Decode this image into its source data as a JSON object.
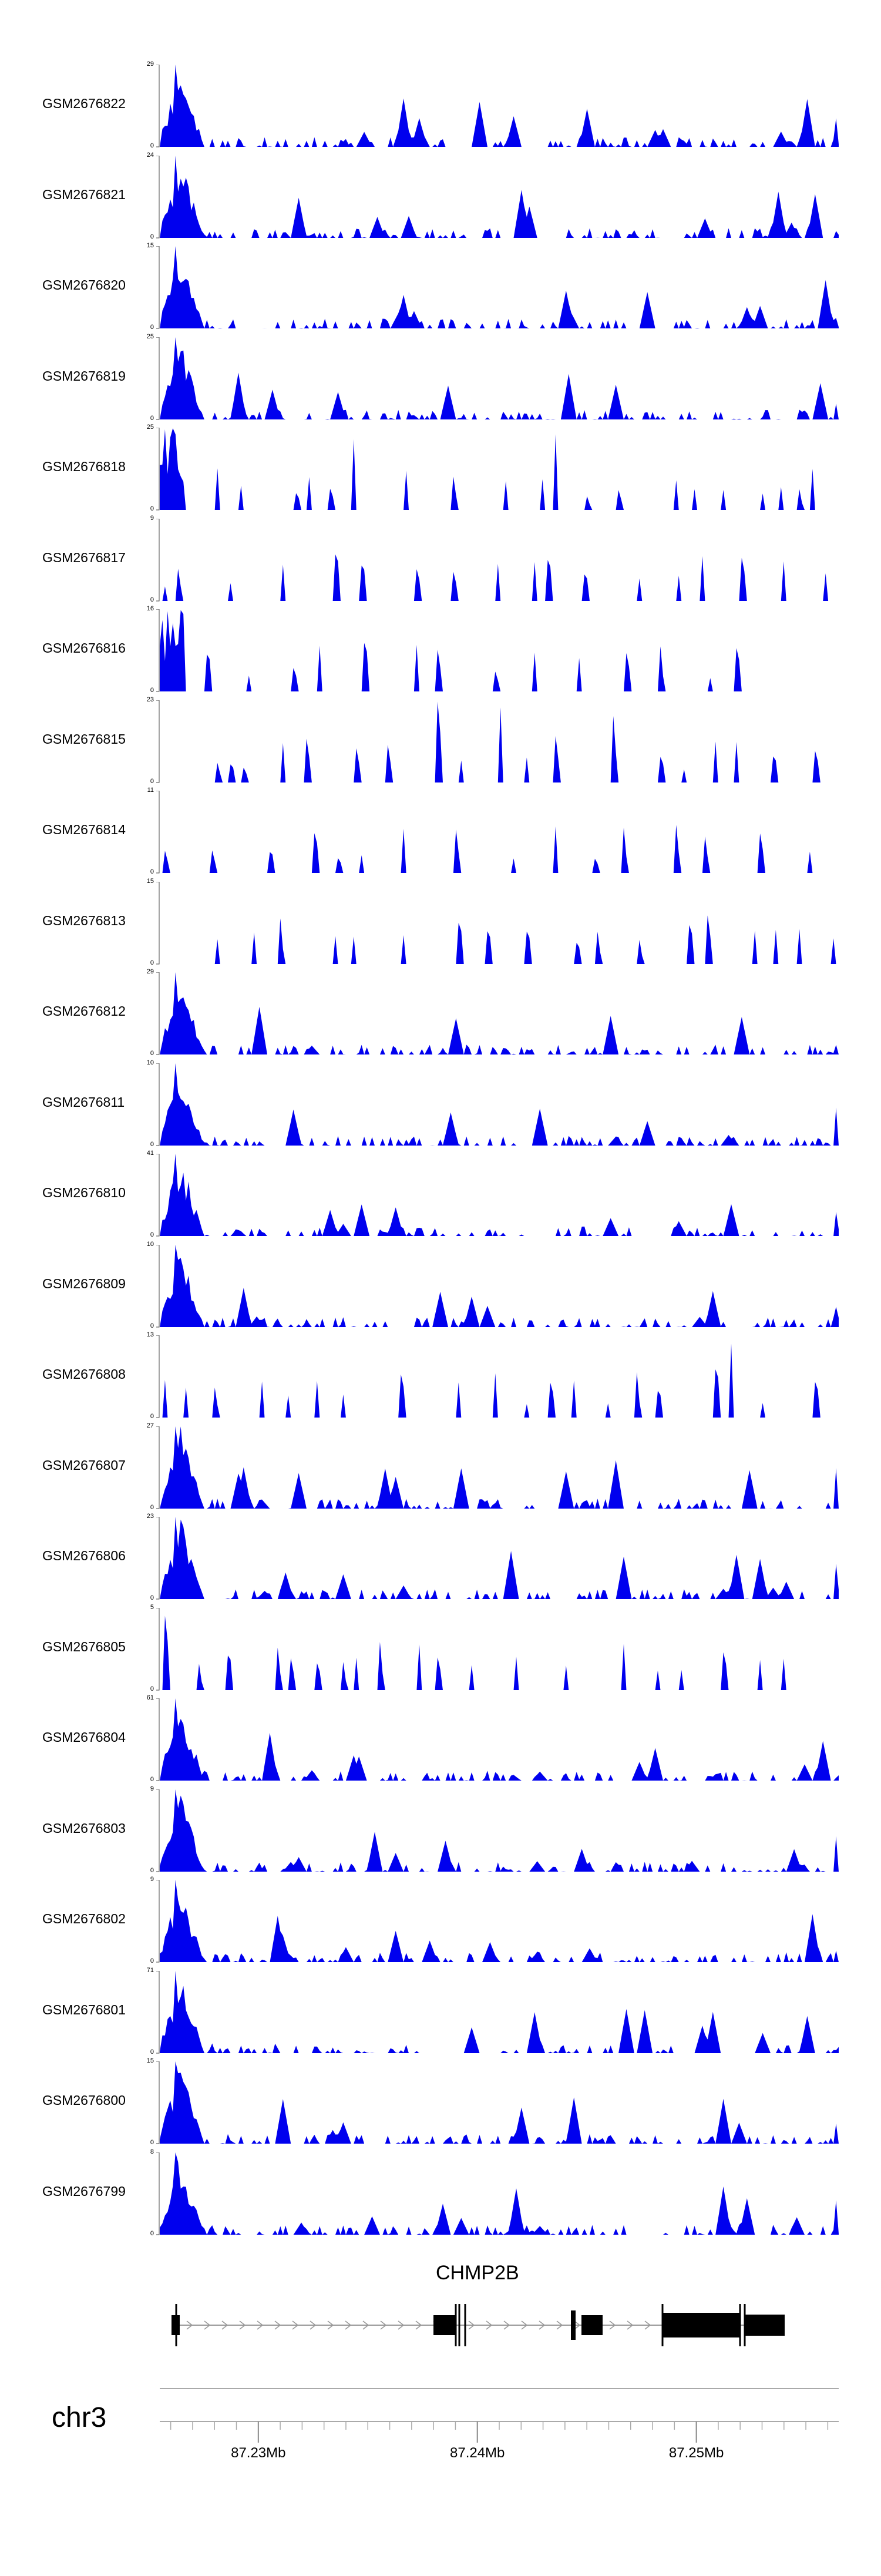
{
  "chart_data": {
    "type": "area",
    "region": {
      "chromosome": "chr3",
      "start_mb": 87.2255,
      "end_mb": 87.2565
    },
    "x_axis": {
      "ticks": [
        87.23,
        87.24,
        87.25
      ],
      "tick_labels": [
        "87.23Mb",
        "87.24Mb",
        "87.25Mb"
      ]
    },
    "fill_color": "#0000ee",
    "gene": {
      "name": "CHMP2B",
      "exon_color": "#000000"
    },
    "tracks": [
      {
        "sample": "GSM2676822",
        "ymax": "29",
        "ymin": "0"
      },
      {
        "sample": "GSM2676821",
        "ymax": "24",
        "ymin": "0"
      },
      {
        "sample": "GSM2676820",
        "ymax": "15",
        "ymin": "0"
      },
      {
        "sample": "GSM2676819",
        "ymax": "25",
        "ymin": "0"
      },
      {
        "sample": "GSM2676818",
        "ymax": "25",
        "ymin": "0"
      },
      {
        "sample": "GSM2676817",
        "ymax": "9",
        "ymin": "0"
      },
      {
        "sample": "GSM2676816",
        "ymax": "16",
        "ymin": "0"
      },
      {
        "sample": "GSM2676815",
        "ymax": "23",
        "ymin": "0"
      },
      {
        "sample": "GSM2676814",
        "ymax": "11",
        "ymin": "0"
      },
      {
        "sample": "GSM2676813",
        "ymax": "15",
        "ymin": "0"
      },
      {
        "sample": "GSM2676812",
        "ymax": "29",
        "ymin": "0"
      },
      {
        "sample": "GSM2676811",
        "ymax": "10",
        "ymin": "0"
      },
      {
        "sample": "GSM2676810",
        "ymax": "41",
        "ymin": "0"
      },
      {
        "sample": "GSM2676809",
        "ymax": "10",
        "ymin": "0"
      },
      {
        "sample": "GSM2676808",
        "ymax": "13",
        "ymin": "0"
      },
      {
        "sample": "GSM2676807",
        "ymax": "27",
        "ymin": "0"
      },
      {
        "sample": "GSM2676806",
        "ymax": "23",
        "ymin": "0"
      },
      {
        "sample": "GSM2676805",
        "ymax": "5",
        "ymin": "0"
      },
      {
        "sample": "GSM2676804",
        "ymax": "61",
        "ymin": "0"
      },
      {
        "sample": "GSM2676803",
        "ymax": "9",
        "ymin": "0"
      },
      {
        "sample": "GSM2676802",
        "ymax": "9",
        "ymin": "0"
      },
      {
        "sample": "GSM2676801",
        "ymax": "71",
        "ymin": "0"
      },
      {
        "sample": "GSM2676800",
        "ymax": "15",
        "ymin": "0"
      },
      {
        "sample": "GSM2676799",
        "ymax": "8",
        "ymin": "0"
      }
    ]
  }
}
